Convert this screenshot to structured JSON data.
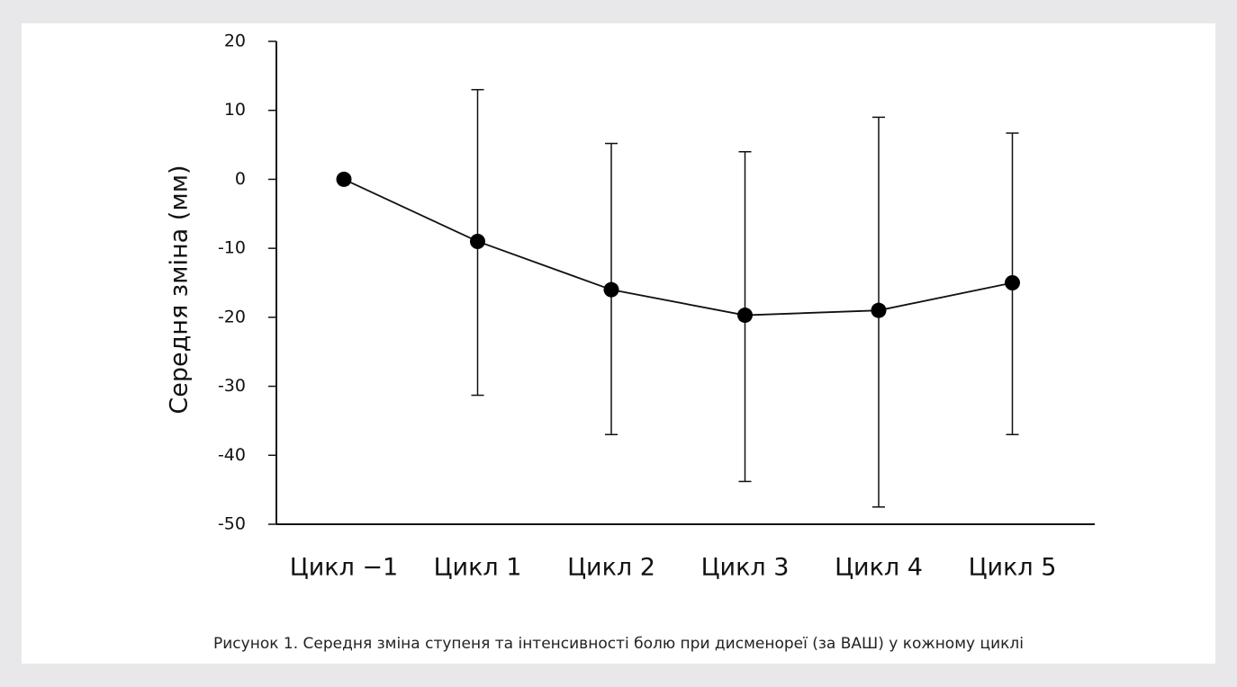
{
  "caption": "Рисунок 1. Середня зміна ступеня та інтенсивності болю при дисменореї (за ВАШ) у кожному циклі",
  "chart_data": {
    "type": "line",
    "ylabel": "Середня зміна (мм)",
    "xlabel": "",
    "ylim": [
      -50,
      20
    ],
    "yticks": [
      20,
      10,
      0,
      -10,
      -20,
      -30,
      -40,
      -50
    ],
    "categories": [
      "Цикл −1",
      "Цикл 1",
      "Цикл 2",
      "Цикл 3",
      "Цикл 4",
      "Цикл 5"
    ],
    "series": [
      {
        "values": [
          0,
          -9,
          -16,
          -19.7,
          -19,
          -15
        ],
        "error_upper": [
          null,
          13,
          5.2,
          4,
          9,
          6.7
        ],
        "error_lower": [
          null,
          -31.3,
          -37,
          -43.8,
          -47.5,
          -37
        ]
      }
    ],
    "grid": false,
    "legend": "none"
  }
}
